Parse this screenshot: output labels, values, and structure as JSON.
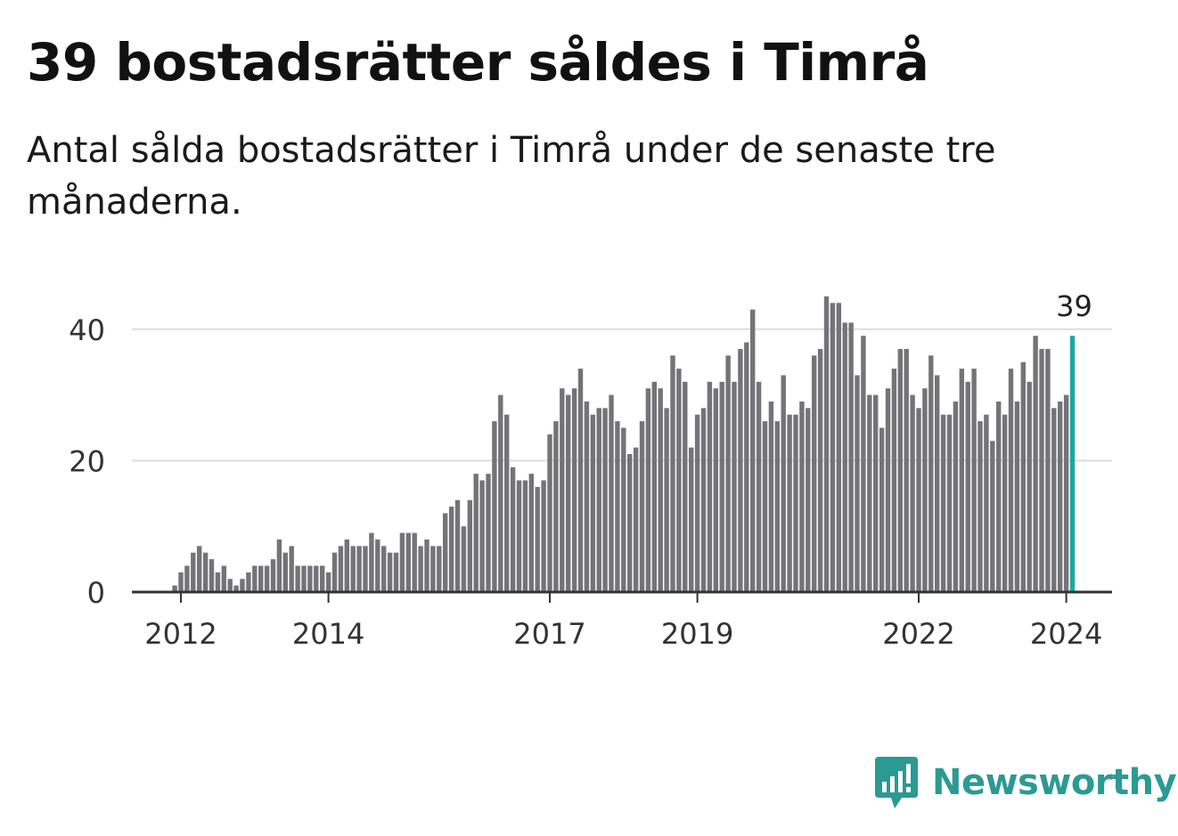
{
  "title": "39 bostadsrätter såldes i Timrå",
  "subtitle": "Antal sålda bostadsrätter i Timrå under de senaste tre månaderna.",
  "brand": {
    "name": "Newsworthy",
    "icon": "newsworthy-logo-icon",
    "color": "#2b9a93"
  },
  "colors": {
    "bar": "#747378",
    "highlight": "#1ea89e",
    "grid": "#dddddd",
    "axis": "#333333",
    "text": "#333333"
  },
  "chart_data": {
    "type": "bar",
    "title": "",
    "xlabel": "",
    "ylabel": "",
    "ylim": [
      0,
      46
    ],
    "y_ticks": [
      0,
      20,
      40
    ],
    "x_ticks": [
      {
        "label": "2012",
        "index": 2
      },
      {
        "label": "2014",
        "index": 26
      },
      {
        "label": "2017",
        "index": 62
      },
      {
        "label": "2019",
        "index": 86
      },
      {
        "label": "2022",
        "index": 122
      },
      {
        "label": "2024",
        "index": 146
      }
    ],
    "grid": true,
    "highlight_index": 147,
    "highlight_label": "39",
    "values": [
      0,
      1,
      3,
      4,
      6,
      7,
      6,
      5,
      3,
      4,
      2,
      1,
      2,
      3,
      4,
      4,
      4,
      5,
      8,
      6,
      7,
      4,
      4,
      4,
      4,
      4,
      3,
      6,
      7,
      8,
      7,
      7,
      7,
      9,
      8,
      7,
      6,
      6,
      9,
      9,
      9,
      7,
      8,
      7,
      7,
      12,
      13,
      14,
      10,
      14,
      18,
      17,
      18,
      26,
      30,
      27,
      19,
      17,
      17,
      18,
      16,
      17,
      24,
      26,
      31,
      30,
      31,
      34,
      29,
      27,
      28,
      28,
      30,
      26,
      25,
      21,
      22,
      26,
      31,
      32,
      31,
      28,
      36,
      34,
      32,
      22,
      27,
      28,
      32,
      31,
      32,
      36,
      32,
      37,
      38,
      43,
      32,
      26,
      29,
      26,
      33,
      27,
      27,
      29,
      28,
      36,
      37,
      45,
      44,
      44,
      41,
      41,
      33,
      39,
      30,
      30,
      25,
      31,
      34,
      37,
      37,
      30,
      28,
      31,
      36,
      33,
      27,
      27,
      29,
      34,
      32,
      34,
      26,
      27,
      23,
      29,
      27,
      34,
      29,
      35,
      32,
      39,
      37,
      37,
      28,
      29,
      30,
      39
    ]
  }
}
